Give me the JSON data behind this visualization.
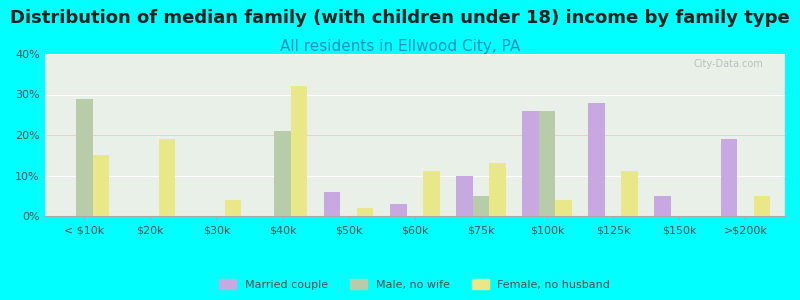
{
  "title": "Distribution of median family (with children under 18) income by family type",
  "subtitle": "All residents in Ellwood City, PA",
  "categories": [
    "< $10k",
    "$20k",
    "$30k",
    "$40k",
    "$50k",
    "$60k",
    "$75k",
    "$100k",
    "$125k",
    "$150k",
    ">$200k"
  ],
  "married_couple": [
    0,
    0,
    0,
    0,
    6,
    3,
    10,
    26,
    28,
    5,
    19
  ],
  "male_no_wife": [
    29,
    0,
    0,
    21,
    0,
    0,
    5,
    26,
    0,
    0,
    0
  ],
  "female_no_husband": [
    15,
    19,
    4,
    32,
    2,
    11,
    13,
    4,
    11,
    0,
    5
  ],
  "married_color": "#c8a8e0",
  "male_color": "#b8ccaa",
  "female_color": "#e8e888",
  "bg_color": "#00ffff",
  "plot_bg_top": "#e8f0e8",
  "plot_bg_bottom": "#f8fff8",
  "ylim": [
    0,
    40
  ],
  "yticks": [
    0,
    10,
    20,
    30,
    40
  ],
  "ytick_labels": [
    "0%",
    "10%",
    "20%",
    "30%",
    "40%"
  ],
  "title_fontsize": 13,
  "subtitle_fontsize": 11,
  "watermark": "City-Data.com"
}
